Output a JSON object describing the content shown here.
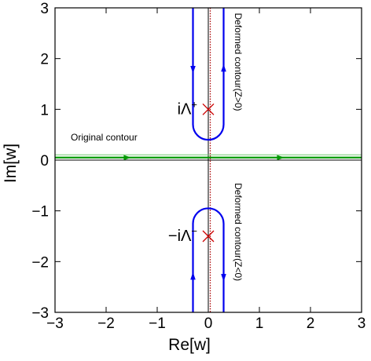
{
  "chart_data": {
    "type": "line",
    "xlabel": "Re[w]",
    "ylabel": "Im[w]",
    "xlim": [
      -3,
      3
    ],
    "ylim": [
      -3,
      3
    ],
    "xticks": [
      "−3",
      "−2",
      "−1",
      "0",
      "1",
      "2",
      "3"
    ],
    "yticks": [
      "−3",
      "−2",
      "−1",
      "0",
      "1",
      "2",
      "3"
    ],
    "grid": false,
    "poles": [
      {
        "label_main": "iΛ",
        "label_sup": "+",
        "x": 0,
        "y": 1
      },
      {
        "label_main": "−iΛ",
        "label_sup": "−",
        "x": 0,
        "y": -1.5
      }
    ],
    "series": [
      {
        "label": "Original contour",
        "color": "#009900",
        "y": 0.05,
        "x_range": [
          -3,
          3
        ],
        "arrows_x": [
          -1.6,
          1.4
        ]
      },
      {
        "label": "Deformed contour(Z>0)",
        "color": "#0000ee",
        "vertex_y": 0.4,
        "half_width": 0.3,
        "y_top": 3,
        "arrow_left_y": 1.8,
        "arrow_right_y": 1.8
      },
      {
        "label": "Deformed contour(Z<0)",
        "color": "#0000ee",
        "vertex_y": -0.95,
        "half_width": 0.3,
        "y_bottom": -3,
        "arrow_left_y": -2.3,
        "arrow_right_y": -2.3
      }
    ],
    "branch_cut": {
      "x": 0,
      "color": "#aa0000",
      "style": "dotted"
    }
  }
}
